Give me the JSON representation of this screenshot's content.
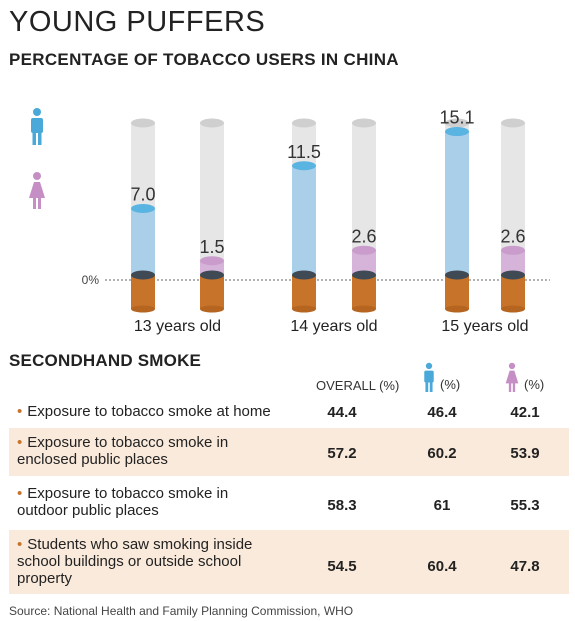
{
  "title": "YOUNG PUFFERS",
  "subtitle": "PERCENTAGE OF TOBACCO USERS IN CHINA",
  "chart_data": {
    "type": "bar",
    "categories": [
      "13 years old",
      "14 years old",
      "15 years old"
    ],
    "series": [
      {
        "values": [
          7.0,
          11.5,
          15.1
        ],
        "color": "#a9cfe9",
        "icon": "male-icon"
      },
      {
        "values": [
          1.5,
          2.6,
          2.6
        ],
        "color": "#d6b3d9",
        "icon": "female-icon"
      }
    ],
    "value_labels": [
      [
        "7.0",
        "11.5",
        "15.1"
      ],
      [
        "1.5",
        "2.6",
        "2.6"
      ]
    ],
    "zero_label": "0%",
    "ylim": [
      0,
      16
    ]
  },
  "secondhand": {
    "title": "SECONDHAND SMOKE",
    "headers": {
      "overall": "OVERALL (%)",
      "male": "(%)",
      "female": "(%)"
    },
    "rows": [
      {
        "label": "Exposure to tobacco smoke at home",
        "overall": "44.4",
        "male": "46.4",
        "female": "42.1"
      },
      {
        "label_lines": [
          "Exposure to tobacco smoke in",
          "enclosed public places"
        ],
        "overall": "57.2",
        "male": "60.2",
        "female": "53.9"
      },
      {
        "label_lines": [
          "Exposure to tobacco smoke in",
          "outdoor public places"
        ],
        "overall": "58.3",
        "male": "61",
        "female": "55.3"
      },
      {
        "label_lines": [
          "Students who saw smoking inside",
          "school buildings or outside school",
          "property"
        ],
        "overall": "54.5",
        "male": "60.4",
        "female": "47.8"
      }
    ],
    "bullet": "•"
  },
  "source": "Source: National Health and Family Planning Commission, WHO",
  "colors": {
    "male": "#4aa9d9",
    "female": "#c58fc6",
    "filter": "#c8732a",
    "tube": "#dcdcdc",
    "row_shade": "#faeadb"
  }
}
